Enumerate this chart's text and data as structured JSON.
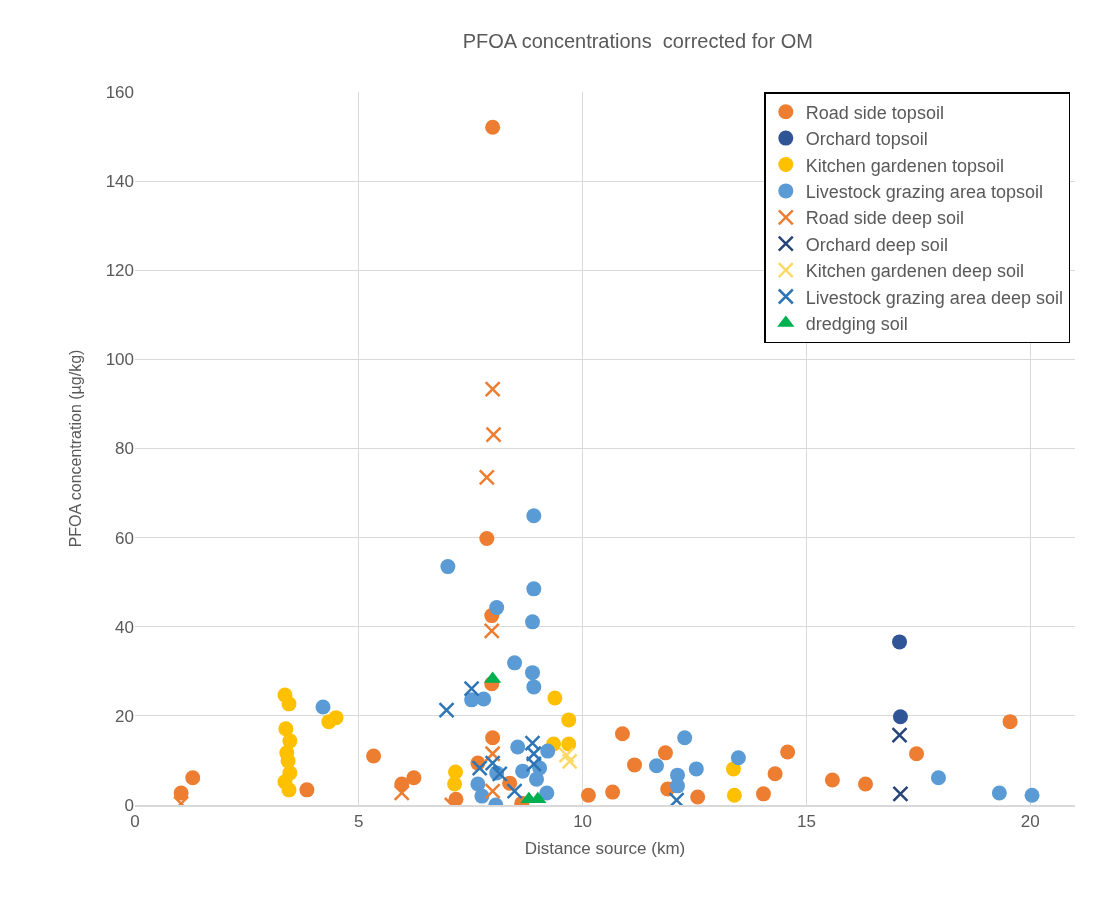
{
  "chart_data": {
    "type": "scatter",
    "title": "PFOA concentrations  corrected for OM",
    "xlabel": "Distance source (km)",
    "ylabel": "PFOA concentration (µg/kg)",
    "xlim": [
      0,
      21
    ],
    "xticks": [
      0,
      5,
      10,
      15,
      20
    ],
    "ylim": [
      0,
      160
    ],
    "yticks": [
      0,
      20,
      40,
      60,
      80,
      100,
      120,
      140,
      160
    ],
    "grid": true,
    "legend": "top right",
    "series": [
      {
        "name": "Road side topsoil",
        "color": "#ed7d31",
        "marker": "circle",
        "x": [
          1.03,
          1.29,
          3.84,
          5.33,
          5.96,
          6.23,
          7.17,
          7.66,
          7.86,
          7.99,
          7.97,
          7.99,
          7.97,
          8.37,
          8.64,
          10.13,
          10.67,
          10.89,
          11.16,
          11.85,
          11.9,
          12.57,
          14.04,
          14.3,
          14.58,
          15.58,
          16.32,
          17.46,
          19.55
        ],
        "values": [
          2.7,
          6.1,
          3.4,
          11.0,
          4.7,
          6.1,
          1.3,
          9.4,
          59.8,
          152.1,
          42.5,
          15.1,
          27.2,
          4.9,
          0.4,
          2.2,
          2.9,
          16.0,
          9.0,
          11.7,
          3.6,
          1.8,
          2.5,
          7.0,
          11.9,
          5.6,
          4.7,
          11.5,
          18.7
        ]
      },
      {
        "name": "Orchard topsoil",
        "color": "#2f5597",
        "marker": "circle",
        "x": [
          17.08,
          17.1
        ],
        "values": [
          36.6,
          19.8
        ]
      },
      {
        "name": "Kitchen gardenen topsoil",
        "color": "#ffc000",
        "marker": "circle",
        "x": [
          3.35,
          3.44,
          3.37,
          3.46,
          3.39,
          3.42,
          3.46,
          3.35,
          3.44,
          4.33,
          4.49,
          7.16,
          7.14,
          9.38,
          9.69,
          9.69,
          9.35,
          13.37,
          13.39
        ],
        "values": [
          24.7,
          22.7,
          17.1,
          14.4,
          11.7,
          9.9,
          7.2,
          5.2,
          3.4,
          18.7,
          19.6,
          7.4,
          4.7,
          24.0,
          19.1,
          13.7,
          13.7,
          8.1,
          2.2
        ]
      },
      {
        "name": "Livestock grazing area topsoil",
        "color": "#5b9bd5",
        "marker": "circle",
        "x": [
          4.2,
          6.99,
          8.91,
          8.91,
          8.88,
          8.08,
          8.48,
          8.88,
          8.91,
          7.52,
          7.79,
          8.55,
          9.22,
          9.04,
          8.66,
          8.97,
          7.66,
          7.75,
          8.06,
          9.2,
          8.08,
          12.28,
          11.65,
          12.12,
          12.54,
          12.12,
          13.48,
          17.95,
          19.31,
          20.04
        ],
        "values": [
          22.0,
          53.5,
          64.9,
          48.5,
          41.1,
          44.3,
          31.9,
          29.7,
          26.5,
          23.6,
          23.8,
          13.0,
          12.1,
          8.3,
          7.6,
          5.8,
          4.7,
          2.0,
          0,
          2.7,
          7.2,
          15.1,
          8.8,
          6.7,
          8.1,
          4.3,
          10.6,
          6.1,
          2.7,
          2.2
        ]
      },
      {
        "name": "Road side deep soil",
        "color": "#ed7d31",
        "marker": "cross",
        "x": [
          1.03,
          5.96,
          7.08,
          7.99,
          8.01,
          7.86,
          7.97,
          7.99,
          7.99
        ],
        "values": [
          0.3,
          2.7,
          0,
          93.3,
          83.1,
          73.5,
          39.1,
          11.5,
          3.1
        ]
      },
      {
        "name": "Orchard deep soil",
        "color": "#264478",
        "marker": "cross",
        "x": [
          17.08,
          17.1
        ],
        "values": [
          15.7,
          2.5
        ]
      },
      {
        "name": "Kitchen gardenen deep soil",
        "color": "#ffd966",
        "marker": "cross",
        "x": [
          9.64,
          9.71
        ],
        "values": [
          11.2,
          9.8
        ]
      },
      {
        "name": "Livestock grazing area deep soil",
        "color": "#2e75b6",
        "marker": "cross",
        "x": [
          6.96,
          7.52,
          7.7,
          7.99,
          8.15,
          8.48,
          8.88,
          8.91,
          8.91,
          12.1
        ],
        "values": [
          21.3,
          26.1,
          8.3,
          9.4,
          7.0,
          3.1,
          13.9,
          11.5,
          9.2,
          1.1
        ]
      },
      {
        "name": "dredging soil",
        "color": "#00b050",
        "marker": "triangle",
        "x": [
          7.99,
          8.8,
          9.0
        ],
        "values": [
          28.3,
          1.3,
          1.3
        ]
      }
    ]
  }
}
